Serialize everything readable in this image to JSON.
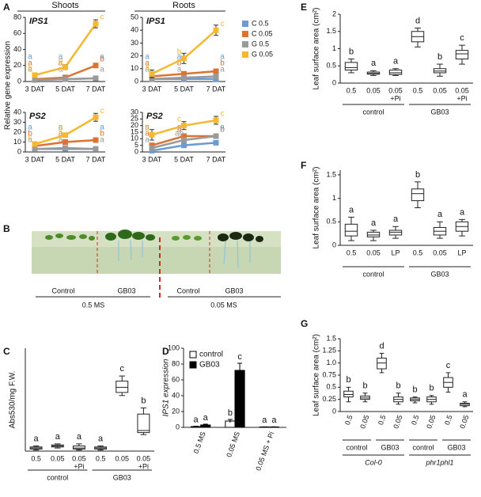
{
  "chart_data": [
    {
      "type": "line",
      "label": "A",
      "ylabel": "Relative gene expression",
      "column_titles": [
        "Shoots",
        "Roots"
      ],
      "categories": [
        "3 DAT",
        "5 DAT",
        "7 DAT"
      ],
      "legend": [
        {
          "name": "C 0.5",
          "color": "#6b9bd1"
        },
        {
          "name": "C 0.05",
          "color": "#dc7233"
        },
        {
          "name": "G 0.5",
          "color": "#9a9a9a"
        },
        {
          "name": "G 0.05",
          "color": "#f5b82e"
        }
      ],
      "panels": [
        {
          "title": "IPS1",
          "ylim": [
            0,
            80
          ],
          "yticks": [
            0,
            20,
            40,
            60,
            80
          ],
          "series": [
            {
              "values": [
                2,
                3,
                4
              ],
              "letters": [
                "a",
                "a",
                "a"
              ]
            },
            {
              "values": [
                3,
                5,
                20
              ],
              "letters": [
                "a",
                "a",
                "b"
              ]
            },
            {
              "values": [
                2,
                3,
                4
              ],
              "letters": [
                "a",
                "a",
                "a"
              ]
            },
            {
              "values": [
                8,
                18,
                72
              ],
              "errors": [
                2,
                3,
                5
              ],
              "letters": [
                "b",
                "b",
                "c"
              ]
            }
          ]
        },
        {
          "title": "IPS1",
          "ylim": [
            0,
            50
          ],
          "yticks": [
            0,
            10,
            20,
            30,
            40,
            50
          ],
          "series": [
            {
              "values": [
                2,
                2,
                2
              ],
              "letters": [
                "a",
                "a",
                "a"
              ]
            },
            {
              "values": [
                4,
                6,
                8
              ],
              "letters": [
                "a",
                "b",
                "b"
              ]
            },
            {
              "values": [
                2,
                3,
                4
              ],
              "letters": [
                "a",
                "a",
                "a"
              ]
            },
            {
              "values": [
                6,
                18,
                40
              ],
              "errors": [
                3,
                4,
                4
              ],
              "letters": [
                "a",
                "b",
                "c"
              ]
            }
          ]
        },
        {
          "title": "PS2",
          "ylim": [
            0,
            40
          ],
          "yticks": [
            0,
            10,
            20,
            30,
            40
          ],
          "series": [
            {
              "values": [
                3,
                3,
                3
              ],
              "letters": [
                "a",
                "a",
                "a"
              ]
            },
            {
              "values": [
                6,
                10,
                12
              ],
              "letters": [
                "b",
                "a",
                "b"
              ]
            },
            {
              "values": [
                3,
                4,
                3
              ],
              "letters": [
                "a",
                "a",
                "a"
              ]
            },
            {
              "values": [
                8,
                17,
                35
              ],
              "errors": [
                2,
                2,
                4
              ],
              "letters": [
                "c",
                "b",
                "c"
              ]
            }
          ]
        },
        {
          "title": "PS2",
          "ylim": [
            0,
            30
          ],
          "yticks": [
            0,
            5,
            10,
            15,
            20,
            25,
            30
          ],
          "series": [
            {
              "values": [
                1,
                5,
                7
              ],
              "letters": [
                "a",
                "a",
                "a"
              ]
            },
            {
              "values": [
                5,
                12,
                12
              ],
              "letters": [
                "a",
                "b",
                "b"
              ]
            },
            {
              "values": [
                3,
                9,
                12
              ],
              "letters": [
                "a",
                "ab",
                "b"
              ]
            },
            {
              "values": [
                13,
                20,
                24
              ],
              "errors": [
                4,
                3,
                3
              ],
              "letters": [
                "b",
                "c",
                "c"
              ]
            }
          ]
        }
      ]
    },
    {
      "type": "box",
      "label": "C",
      "ylabel": "Abs530/mg F.W.",
      "ylim": [
        0,
        10
      ],
      "groups": [
        {
          "name": "control",
          "categories": [
            [
              "0.5"
            ],
            [
              "0.05"
            ],
            [
              "0.05",
              "+Pi"
            ]
          ],
          "boxes": [
            [
              0.1,
              0.2,
              0.3,
              0.4,
              0.5
            ],
            [
              0.3,
              0.4,
              0.5,
              0.6,
              0.7
            ],
            [
              0.1,
              0.2,
              0.3,
              0.5,
              0.7
            ]
          ],
          "letters": [
            "a",
            "a",
            "a"
          ]
        },
        {
          "name": "GB03",
          "categories": [
            [
              "0.5"
            ],
            [
              "0.05"
            ],
            [
              "0.05",
              "+Pi"
            ]
          ],
          "boxes": [
            [
              0.1,
              0.2,
              0.3,
              0.4,
              0.5
            ],
            [
              5.4,
              5.7,
              6.2,
              6.8,
              7.3
            ],
            [
              1.6,
              1.8,
              2.0,
              3.6,
              4.2
            ]
          ],
          "letters": [
            "a",
            "c",
            "b"
          ]
        }
      ]
    },
    {
      "type": "bar",
      "label": "D",
      "ylabel": "IPS1 expression",
      "ylim": [
        0,
        100
      ],
      "yticks": [
        0,
        20,
        40,
        60,
        80,
        100
      ],
      "categories": [
        "0.5 MS",
        "0.05 MS",
        "0.05 MS + Pi"
      ],
      "series": [
        {
          "name": "control",
          "color": "#ffffff",
          "values": [
            1,
            8,
            0.5
          ],
          "errors": [
            0.5,
            2,
            0.2
          ],
          "letters": [
            "a",
            "b",
            "a"
          ]
        },
        {
          "name": "GB03",
          "color": "#000000",
          "values": [
            3,
            72,
            0.5
          ],
          "errors": [
            1,
            9,
            0.2
          ],
          "letters": [
            "a",
            "c",
            "a"
          ]
        }
      ]
    },
    {
      "type": "box",
      "label": "E",
      "ylabel": "Leaf surface area (cm²)",
      "ylim": [
        0,
        2
      ],
      "yticks": [
        0,
        0.5,
        1,
        1.5,
        2
      ],
      "groups": [
        {
          "name": "control",
          "categories": [
            [
              "0.5"
            ],
            [
              "0.05"
            ],
            [
              "0.05",
              "+Pi"
            ]
          ],
          "boxes": [
            [
              0.3,
              0.38,
              0.45,
              0.6,
              0.7
            ],
            [
              0.22,
              0.26,
              0.28,
              0.32,
              0.36
            ],
            [
              0.22,
              0.25,
              0.3,
              0.38,
              0.42
            ]
          ],
          "letters": [
            "b",
            "a",
            "a"
          ]
        },
        {
          "name": "GB03",
          "categories": [
            [
              "0.5"
            ],
            [
              "0.05"
            ],
            [
              "0.05",
              "+Pi"
            ]
          ],
          "boxes": [
            [
              1.05,
              1.2,
              1.35,
              1.5,
              1.6
            ],
            [
              0.2,
              0.3,
              0.35,
              0.42,
              0.55
            ],
            [
              0.55,
              0.7,
              0.85,
              0.95,
              1.1
            ]
          ],
          "letters": [
            "d",
            "b",
            "c"
          ]
        }
      ]
    },
    {
      "type": "box",
      "label": "F",
      "ylabel": "Leaf surface area (cm²)",
      "ylim": [
        0,
        1.6
      ],
      "yticks": [
        0,
        0.5,
        1,
        1.5
      ],
      "groups": [
        {
          "name": "control",
          "categories": [
            [
              "0.5"
            ],
            [
              "0.05"
            ],
            [
              "LP"
            ]
          ],
          "boxes": [
            [
              0.1,
              0.2,
              0.3,
              0.45,
              0.6
            ],
            [
              0.1,
              0.18,
              0.22,
              0.28,
              0.32
            ],
            [
              0.15,
              0.22,
              0.28,
              0.32,
              0.4
            ]
          ],
          "letters": [
            "a",
            "a",
            "a"
          ]
        },
        {
          "name": "GB03",
          "categories": [
            [
              "0.5"
            ],
            [
              "0.05"
            ],
            [
              "LP"
            ]
          ],
          "boxes": [
            [
              0.8,
              0.95,
              1.1,
              1.2,
              1.35
            ],
            [
              0.15,
              0.22,
              0.3,
              0.38,
              0.5
            ],
            [
              0.2,
              0.3,
              0.4,
              0.5,
              0.55
            ]
          ],
          "letters": [
            "b",
            "a",
            "a"
          ]
        }
      ]
    },
    {
      "type": "box",
      "label": "G",
      "ylabel": "Leaf surface area (cm²)",
      "ylim": [
        0,
        1.5
      ],
      "yticks": [
        0,
        0.25,
        0.5,
        0.75,
        {
          "value": 1,
          "label": "1.0"
        },
        1.25,
        1.5
      ],
      "supergroups": [
        {
          "name": "Col-0",
          "groups": [
            {
              "name": "control",
              "categories": [
                [
                  "0.5"
                ],
                [
                  "0.05"
                ]
              ],
              "boxes": [
                [
                  0.2,
                  0.3,
                  0.35,
                  0.42,
                  0.5
                ],
                [
                  0.2,
                  0.25,
                  0.28,
                  0.32,
                  0.38
                ]
              ],
              "letters": [
                "b",
                "b"
              ]
            },
            {
              "name": "GB03",
              "categories": [
                [
                  "0.5"
                ],
                [
                  "0.05"
                ]
              ],
              "boxes": [
                [
                  0.8,
                  0.88,
                  1.0,
                  1.1,
                  1.2
                ],
                [
                  0.15,
                  0.2,
                  0.25,
                  0.3,
                  0.38
                ]
              ],
              "letters": [
                "d",
                "b"
              ]
            }
          ]
        },
        {
          "name": "phr1phl1",
          "groups": [
            {
              "name": "control",
              "categories": [
                [
                  "0.5"
                ],
                [
                  "0.05"
                ]
              ],
              "boxes": [
                [
                  0.18,
                  0.22,
                  0.25,
                  0.28,
                  0.3
                ],
                [
                  0.15,
                  0.2,
                  0.25,
                  0.3,
                  0.33
                ]
              ],
              "letters": [
                "b",
                "b"
              ]
            },
            {
              "name": "GB03",
              "categories": [
                [
                  "0.5"
                ],
                [
                  "0.05"
                ]
              ],
              "boxes": [
                [
                  0.4,
                  0.5,
                  0.6,
                  0.7,
                  0.8
                ],
                [
                  0.1,
                  0.12,
                  0.15,
                  0.17,
                  0.2
                ]
              ],
              "letters": [
                "c",
                "a"
              ]
            }
          ]
        }
      ]
    }
  ],
  "photo": {
    "label": "B",
    "treatments": [
      "Control",
      "GB03",
      "Control",
      "GB03"
    ],
    "media": [
      "0.5 MS",
      "0.05 MS"
    ]
  }
}
